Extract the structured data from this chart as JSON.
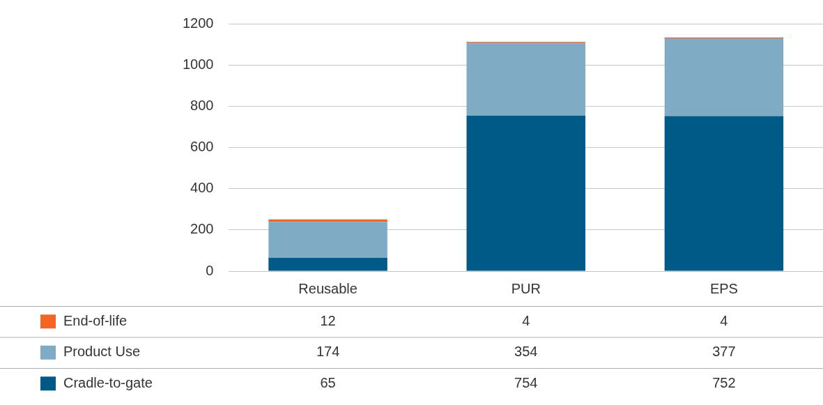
{
  "chart_data": {
    "type": "bar",
    "stacked": true,
    "categories": [
      "Reusable",
      "PUR",
      "EPS"
    ],
    "series": [
      {
        "name": "Cradle-to-gate",
        "color": "#005a87",
        "values": [
          65,
          754,
          752
        ]
      },
      {
        "name": "Product Use",
        "color": "#7facc4",
        "values": [
          174,
          354,
          377
        ]
      },
      {
        "name": "End-of-life",
        "color": "#f26522",
        "values": [
          12,
          4,
          4
        ]
      }
    ],
    "ylim": [
      0,
      1200
    ],
    "yticks": [
      0,
      200,
      400,
      600,
      800,
      1000,
      1200
    ],
    "grid": "y",
    "legend": "bottom",
    "data_labels": true
  }
}
